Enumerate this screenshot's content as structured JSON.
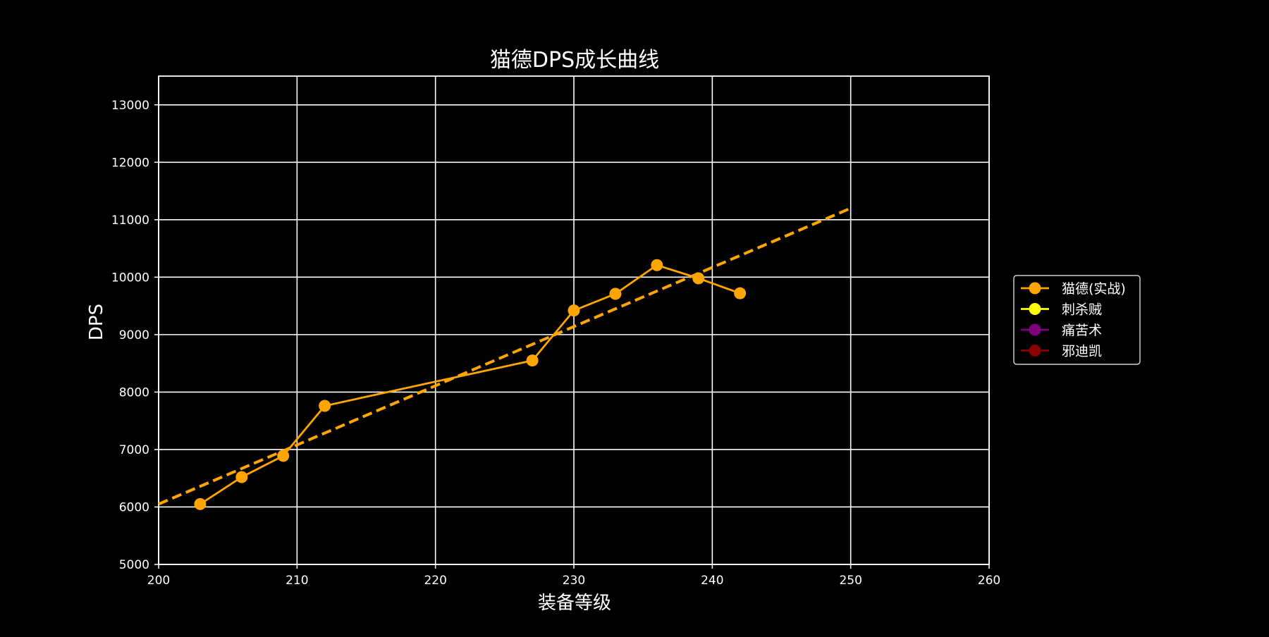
{
  "chart_data": {
    "type": "line",
    "title": "猫德DPS成长曲线",
    "xlabel": "装备等级",
    "ylabel": "DPS",
    "xlim": [
      200,
      260
    ],
    "ylim": [
      5000,
      13500
    ],
    "x_ticks": [
      200,
      210,
      220,
      230,
      240,
      250,
      260
    ],
    "y_ticks": [
      5000,
      6000,
      7000,
      8000,
      9000,
      10000,
      11000,
      12000,
      13000
    ],
    "grid": true,
    "legend_position": "right-center",
    "background": "#000000",
    "series": [
      {
        "name": "猫德(实战)",
        "color": "#FFA500",
        "marker": "circle",
        "style": "solid",
        "x": [
          203,
          206,
          209,
          212,
          227,
          230,
          233,
          236,
          239,
          242
        ],
        "y": [
          6050,
          6520,
          6890,
          7760,
          8550,
          9420,
          9710,
          10210,
          9980,
          9720
        ]
      },
      {
        "name": "刺杀贼",
        "color": "#FFFF00",
        "marker": "circle",
        "style": "solid",
        "x": [],
        "y": []
      },
      {
        "name": "痛苦术",
        "color": "#800080",
        "marker": "circle",
        "style": "solid",
        "x": [],
        "y": []
      },
      {
        "name": "邪迪凯",
        "color": "#8B0000",
        "marker": "circle",
        "style": "solid",
        "x": [],
        "y": []
      }
    ],
    "trend_line": {
      "color": "#FFA500",
      "style": "dashed",
      "x": [
        200,
        250
      ],
      "y": [
        6050,
        11200
      ]
    }
  }
}
